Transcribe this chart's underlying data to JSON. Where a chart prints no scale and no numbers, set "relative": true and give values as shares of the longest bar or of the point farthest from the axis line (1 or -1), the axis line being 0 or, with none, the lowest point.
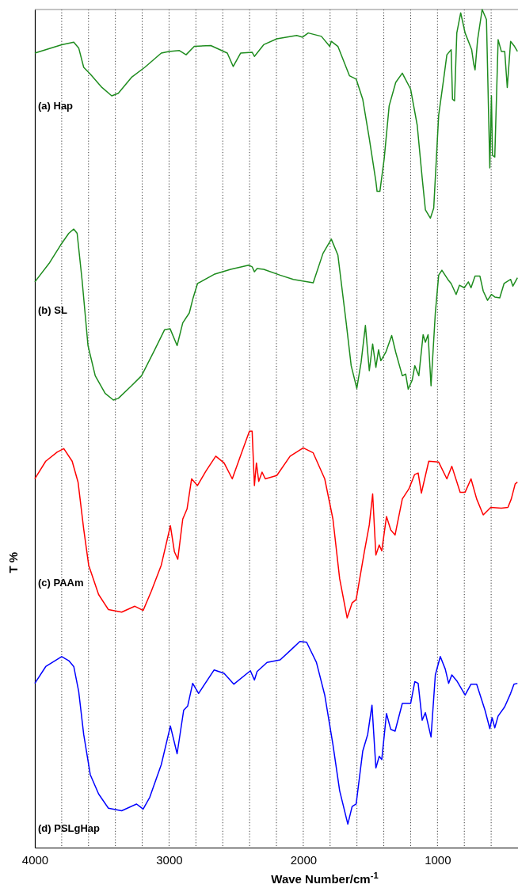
{
  "chart_data": {
    "type": "line",
    "relative": true,
    "xlabel": "Wave Number/cm$^{-1}$",
    "ylabel": "T %",
    "xlim": [
      4000,
      400
    ],
    "xticks": [
      4000,
      {
        "value": 3800,
        "label": null
      },
      {
        "value": 3600,
        "label": null
      },
      {
        "value": 3400,
        "label": null
      },
      {
        "value": 3200,
        "label": null
      },
      3000,
      {
        "value": 2800,
        "label": null
      },
      {
        "value": 2600,
        "label": null
      },
      {
        "value": 2400,
        "label": null
      },
      {
        "value": 2200,
        "label": null
      },
      2000,
      {
        "value": 1800,
        "label": null
      },
      {
        "value": 1600,
        "label": null
      },
      {
        "value": 1400,
        "label": null
      },
      {
        "value": 1200,
        "label": null
      },
      1000,
      {
        "value": 800,
        "label": null
      },
      {
        "value": 600,
        "label": null
      }
    ],
    "grid": "x",
    "tick_labels": "x",
    "line_style": "solid",
    "series": [
      {
        "name": "(a) Hap",
        "color": "#1e8c1e",
        "x": [
          4000,
          3800,
          3710,
          3673,
          3636,
          3587,
          3500,
          3427,
          3378,
          3280,
          3181,
          3058,
          3000,
          2923,
          2873,
          2812,
          2689,
          2566,
          2522,
          2467,
          2381,
          2364,
          2295,
          2197,
          2049,
          2005,
          1963,
          1865,
          1803,
          1791,
          1742,
          1656,
          1606,
          1557,
          1508,
          1459,
          1450,
          1429,
          1397,
          1360,
          1311,
          1262,
          1200,
          1151,
          1114,
          1090,
          1053,
          1028,
          991,
          954,
          930,
          898,
          888,
          873,
          856,
          827,
          794,
          745,
          730,
          720,
          701,
          667,
          635,
          610,
          598,
          590,
          573,
          548,
          524,
          499,
          480,
          455,
          426,
          404
        ],
        "values": [
          0.948,
          0.958,
          0.961,
          0.954,
          0.931,
          0.923,
          0.907,
          0.897,
          0.9,
          0.919,
          0.931,
          0.948,
          0.95,
          0.951,
          0.946,
          0.956,
          0.957,
          0.948,
          0.932,
          0.948,
          0.949,
          0.944,
          0.958,
          0.965,
          0.969,
          0.967,
          0.972,
          0.968,
          0.956,
          0.962,
          0.956,
          0.921,
          0.917,
          0.893,
          0.846,
          0.795,
          0.783,
          0.783,
          0.822,
          0.885,
          0.913,
          0.924,
          0.905,
          0.862,
          0.799,
          0.761,
          0.751,
          0.763,
          0.874,
          0.917,
          0.946,
          0.952,
          0.893,
          0.891,
          0.972,
          0.996,
          0.972,
          0.952,
          0.935,
          0.928,
          0.964,
          1,
          0.988,
          0.811,
          0.897,
          0.826,
          0.824,
          0.964,
          0.95,
          0.95,
          0.907,
          0.962,
          0.956,
          0.95
        ]
      },
      {
        "name": "(b) SL",
        "color": "#1e8c1e",
        "x": [
          4000,
          3894,
          3808,
          3747,
          3710,
          3685,
          3648,
          3604,
          3550,
          3476,
          3415,
          3378,
          3280,
          3205,
          3107,
          3033,
          2992,
          2940,
          2898,
          2849,
          2824,
          2788,
          2664,
          2541,
          2406,
          2381,
          2364,
          2344,
          2295,
          2172,
          2074,
          1926,
          1853,
          1791,
          1742,
          1680,
          1643,
          1601,
          1569,
          1537,
          1508,
          1483,
          1459,
          1439,
          1422,
          1385,
          1341,
          1311,
          1262,
          1237,
          1218,
          1188,
          1169,
          1139,
          1107,
          1090,
          1070,
          1048,
          1016,
          991,
          967,
          923,
          898,
          861,
          836,
          800,
          770,
          750,
          720,
          684,
          659,
          627,
          598,
          573,
          536,
          504,
          455,
          438,
          404
        ],
        "values": [
          0.675,
          0.697,
          0.719,
          0.733,
          0.738,
          0.733,
          0.677,
          0.599,
          0.563,
          0.542,
          0.534,
          0.536,
          0.551,
          0.563,
          0.594,
          0.618,
          0.619,
          0.599,
          0.626,
          0.638,
          0.654,
          0.673,
          0.684,
          0.69,
          0.695,
          0.693,
          0.687,
          0.691,
          0.69,
          0.683,
          0.678,
          0.674,
          0.709,
          0.726,
          0.707,
          0.626,
          0.575,
          0.548,
          0.579,
          0.623,
          0.569,
          0.601,
          0.573,
          0.594,
          0.581,
          0.591,
          0.611,
          0.591,
          0.563,
          0.565,
          0.547,
          0.558,
          0.575,
          0.563,
          0.612,
          0.603,
          0.612,
          0.551,
          0.638,
          0.683,
          0.689,
          0.678,
          0.673,
          0.66,
          0.671,
          0.668,
          0.675,
          0.668,
          0.682,
          0.682,
          0.664,
          0.653,
          0.66,
          0.657,
          0.656,
          0.673,
          0.678,
          0.67,
          0.68
        ]
      },
      {
        "name": "(c) PAAm",
        "color": "#ff0000",
        "x": [
          4000,
          3919,
          3833,
          3784,
          3722,
          3678,
          3636,
          3599,
          3525,
          3452,
          3353,
          3255,
          3193,
          3132,
          3058,
          2990,
          2960,
          2935,
          2898,
          2866,
          2832,
          2788,
          2726,
          2652,
          2590,
          2529,
          2455,
          2401,
          2381,
          2364,
          2349,
          2332,
          2307,
          2283,
          2197,
          2098,
          2000,
          1926,
          1840,
          1779,
          1729,
          1673,
          1636,
          1606,
          1545,
          1508,
          1483,
          1459,
          1434,
          1415,
          1380,
          1348,
          1316,
          1262,
          1213,
          1171,
          1144,
          1120,
          1065,
          991,
          930,
          893,
          831,
          794,
          750,
          708,
          659,
          603,
          524,
          475,
          450,
          421,
          404
        ],
        "values": [
          0.44,
          0.461,
          0.472,
          0.476,
          0.461,
          0.436,
          0.38,
          0.337,
          0.302,
          0.284,
          0.281,
          0.288,
          0.283,
          0.306,
          0.337,
          0.384,
          0.353,
          0.344,
          0.392,
          0.404,
          0.44,
          0.432,
          0.449,
          0.467,
          0.459,
          0.44,
          0.473,
          0.497,
          0.497,
          0.432,
          0.459,
          0.437,
          0.448,
          0.44,
          0.444,
          0.467,
          0.477,
          0.471,
          0.44,
          0.392,
          0.321,
          0.274,
          0.292,
          0.296,
          0.353,
          0.385,
          0.422,
          0.349,
          0.361,
          0.354,
          0.395,
          0.379,
          0.373,
          0.416,
          0.428,
          0.445,
          0.447,
          0.423,
          0.461,
          0.46,
          0.44,
          0.455,
          0.424,
          0.424,
          0.44,
          0.416,
          0.397,
          0.406,
          0.405,
          0.406,
          0.416,
          0.434,
          0.436
        ]
      },
      {
        "name": "(d) PSLgHap",
        "color": "#0000ff",
        "x": [
          4000,
          3919,
          3800,
          3747,
          3710,
          3673,
          3636,
          3587,
          3525,
          3452,
          3353,
          3242,
          3193,
          3144,
          3058,
          2990,
          2940,
          2891,
          2861,
          2824,
          2780,
          2664,
          2590,
          2517,
          2394,
          2364,
          2344,
          2270,
          2172,
          2098,
          2025,
          1975,
          1902,
          1840,
          1779,
          1729,
          1668,
          1636,
          1606,
          1557,
          1520,
          1488,
          1459,
          1434,
          1415,
          1380,
          1348,
          1316,
          1262,
          1200,
          1169,
          1144,
          1114,
          1090,
          1048,
          1016,
          979,
          942,
          917,
          893,
          856,
          794,
          750,
          708,
          646,
          610,
          593,
          573,
          548,
          499,
          455,
          430,
          404
        ],
        "values": [
          0.196,
          0.216,
          0.228,
          0.223,
          0.216,
          0.186,
          0.135,
          0.087,
          0.064,
          0.047,
          0.044,
          0.052,
          0.046,
          0.06,
          0.099,
          0.145,
          0.112,
          0.164,
          0.169,
          0.196,
          0.184,
          0.212,
          0.208,
          0.195,
          0.211,
          0.2,
          0.21,
          0.221,
          0.224,
          0.235,
          0.246,
          0.245,
          0.221,
          0.182,
          0.123,
          0.068,
          0.028,
          0.049,
          0.052,
          0.115,
          0.135,
          0.17,
          0.095,
          0.109,
          0.105,
          0.16,
          0.141,
          0.139,
          0.172,
          0.172,
          0.198,
          0.196,
          0.152,
          0.161,
          0.132,
          0.206,
          0.228,
          0.213,
          0.196,
          0.206,
          0.199,
          0.182,
          0.195,
          0.195,
          0.164,
          0.142,
          0.155,
          0.143,
          0.157,
          0.168,
          0.184,
          0.195,
          0.196
        ]
      }
    ]
  }
}
